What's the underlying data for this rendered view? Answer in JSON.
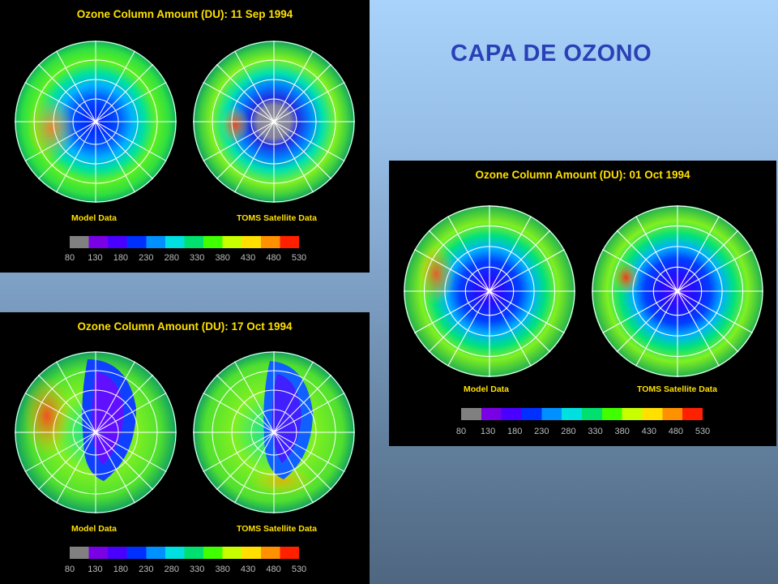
{
  "slide_title": "CAPA DE OZONO",
  "panels": [
    {
      "title": "Ozone Column Amount (DU): 11 Sep 1994",
      "left_label": "Model Data",
      "right_label": "TOMS Satellite Data"
    },
    {
      "title": "Ozone Column Amount (DU): 01 Oct 1994",
      "left_label": "Model Data",
      "right_label": "TOMS Satellite Data"
    },
    {
      "title": "Ozone Column Amount (DU): 17 Oct 1994",
      "left_label": "Model Data",
      "right_label": "TOMS Satellite Data"
    }
  ],
  "colorbar": {
    "ticks": [
      "80",
      "130",
      "180",
      "230",
      "280",
      "330",
      "380",
      "430",
      "480",
      "530"
    ],
    "colors": [
      "#808080",
      "#7a00e6",
      "#4a00ff",
      "#0030ff",
      "#0090ff",
      "#00e0e0",
      "#00e070",
      "#40ff00",
      "#c8ff00",
      "#ffe000",
      "#ff9000",
      "#ff2000"
    ]
  },
  "colors": {
    "title_yellow": "#ffe000",
    "slide_title_blue": "#2a41b5"
  }
}
